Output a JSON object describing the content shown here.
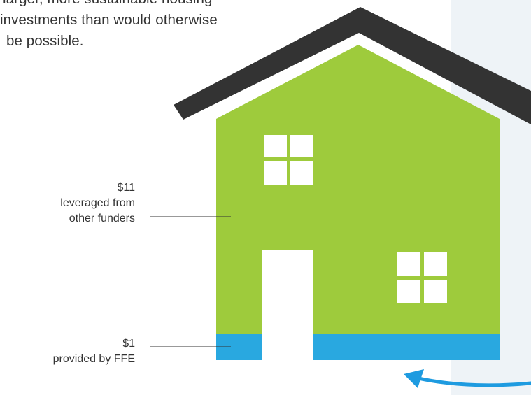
{
  "intro": {
    "lines": [
      "larger, more sustainable housing",
      "investments than would otherwise",
      "be possible."
    ]
  },
  "callouts": {
    "leveraged": {
      "amount": "$11",
      "line1": "leveraged from",
      "line2": "other funders"
    },
    "ffe": {
      "amount": "$1",
      "line1": "provided by FFE"
    }
  },
  "colors": {
    "house_body": "#9ecb3c",
    "roof": "#333333",
    "roof_outline": "#ffffff",
    "foundation": "#29a8e0",
    "door": "#ffffff",
    "windows": "#ffffff",
    "side_panel": "#eef3f7",
    "arrow": "#1e9be0",
    "text": "#333333"
  }
}
